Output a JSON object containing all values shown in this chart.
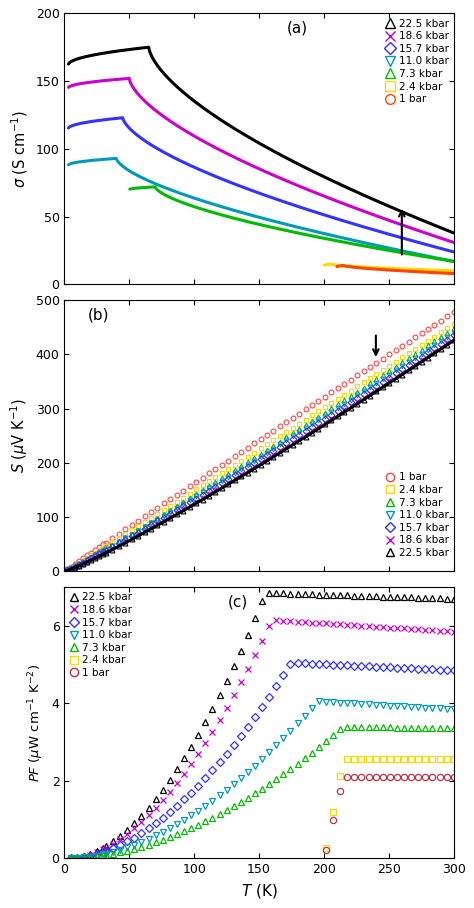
{
  "pressures": [
    "22.5 kbar",
    "18.6 kbar",
    "15.7 kbar",
    "11.0 kbar",
    "7.3 kbar",
    "2.4 kbar",
    "1 bar"
  ],
  "colors_a": [
    "black",
    "#CC00CC",
    "#3333FF",
    "#0099BB",
    "#00BB00",
    "#FFD700",
    "#FF4500"
  ],
  "colors_b_order": [
    "#FF4444",
    "#FFD700",
    "#00BB00",
    "#0099BB",
    "#3333FF",
    "#CC00CC",
    "black"
  ],
  "colors_c": [
    "black",
    "#CC00CC",
    "#3333FF",
    "#0099BB",
    "#00BB00",
    "#FFD700",
    "#BB3344"
  ],
  "panel_labels": [
    "(a)",
    "(b)",
    "(c)"
  ],
  "sigma_ylabel": "$\\sigma$ (S cm$^{-1}$)",
  "S_ylabel": "$S$ ($\\mu$V K$^{-1}$)",
  "PF_ylabel": "$PF$ ($\\mu$W cm$^{-1}$ K$^{-2}$)",
  "xlabel": "$T$ (K)",
  "sigma_ylim": [
    0,
    200
  ],
  "S_ylim": [
    0,
    500
  ],
  "PF_ylim": [
    0,
    7
  ],
  "figsize": [
    4.74,
    9.08
  ],
  "dpi": 100
}
